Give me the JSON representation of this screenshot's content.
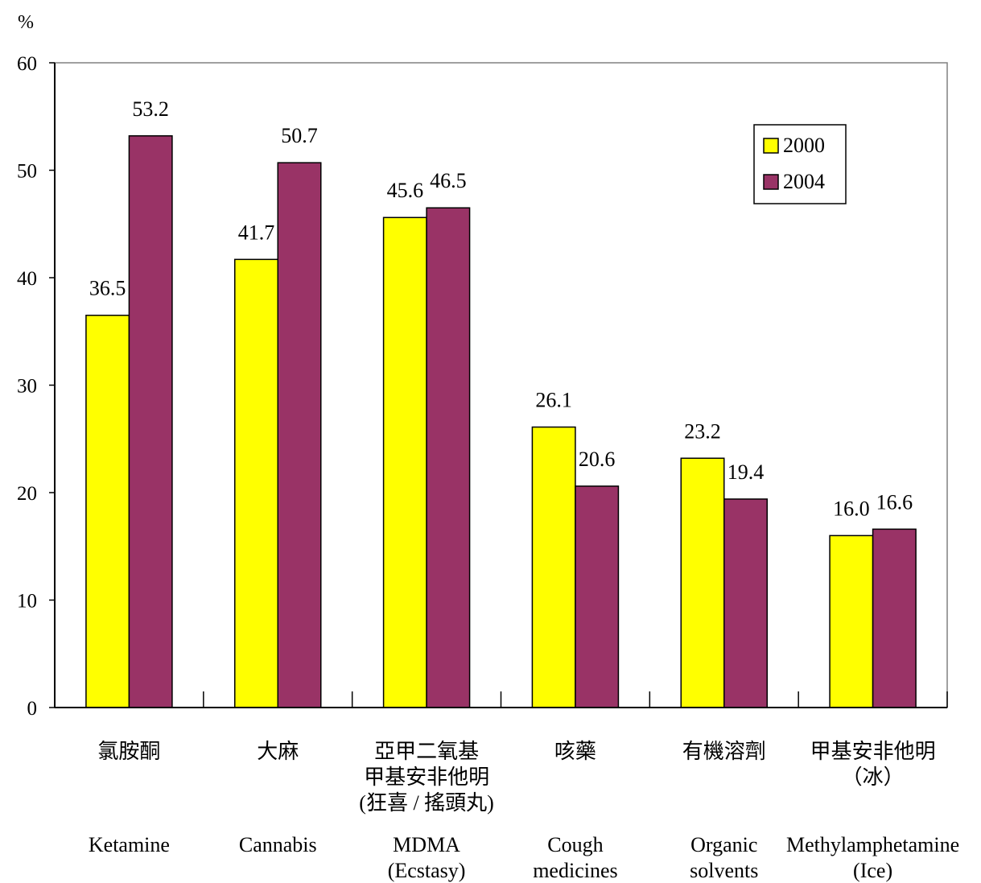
{
  "chart_data": {
    "type": "bar",
    "ylabel": "%",
    "ylim": [
      0,
      60
    ],
    "yticks": [
      "0",
      "10",
      "20",
      "30",
      "40",
      "50",
      "60"
    ],
    "grid": false,
    "legend_position": "top-right",
    "categories": [
      {
        "chinese": [
          "氯胺酮"
        ],
        "english": [
          "Ketamine"
        ]
      },
      {
        "chinese": [
          "大麻"
        ],
        "english": [
          "Cannabis"
        ]
      },
      {
        "chinese": [
          "亞甲二氧基",
          "甲基安非他明",
          "(狂喜 / 搖頭丸)"
        ],
        "english": [
          "MDMA",
          "(Ecstasy)"
        ]
      },
      {
        "chinese": [
          "咳藥"
        ],
        "english": [
          "Cough",
          "medicines"
        ]
      },
      {
        "chinese": [
          "有機溶劑"
        ],
        "english": [
          "Organic",
          "solvents"
        ]
      },
      {
        "chinese": [
          "甲基安非他明",
          "（冰）"
        ],
        "english": [
          "Methylamphetamine",
          "(Ice)"
        ]
      }
    ],
    "series": [
      {
        "name": "2000",
        "color": "#ffff00",
        "values": [
          36.5,
          41.7,
          45.6,
          26.1,
          23.2,
          16.0
        ],
        "labels": [
          "36.5",
          "41.7",
          "45.6",
          "26.1",
          "23.2",
          "16.0"
        ]
      },
      {
        "name": "2004",
        "color": "#993366",
        "values": [
          53.2,
          50.7,
          46.5,
          20.6,
          19.4,
          16.6
        ],
        "labels": [
          "53.2",
          "50.7",
          "46.5",
          "20.6",
          "19.4",
          "16.6"
        ]
      }
    ]
  }
}
